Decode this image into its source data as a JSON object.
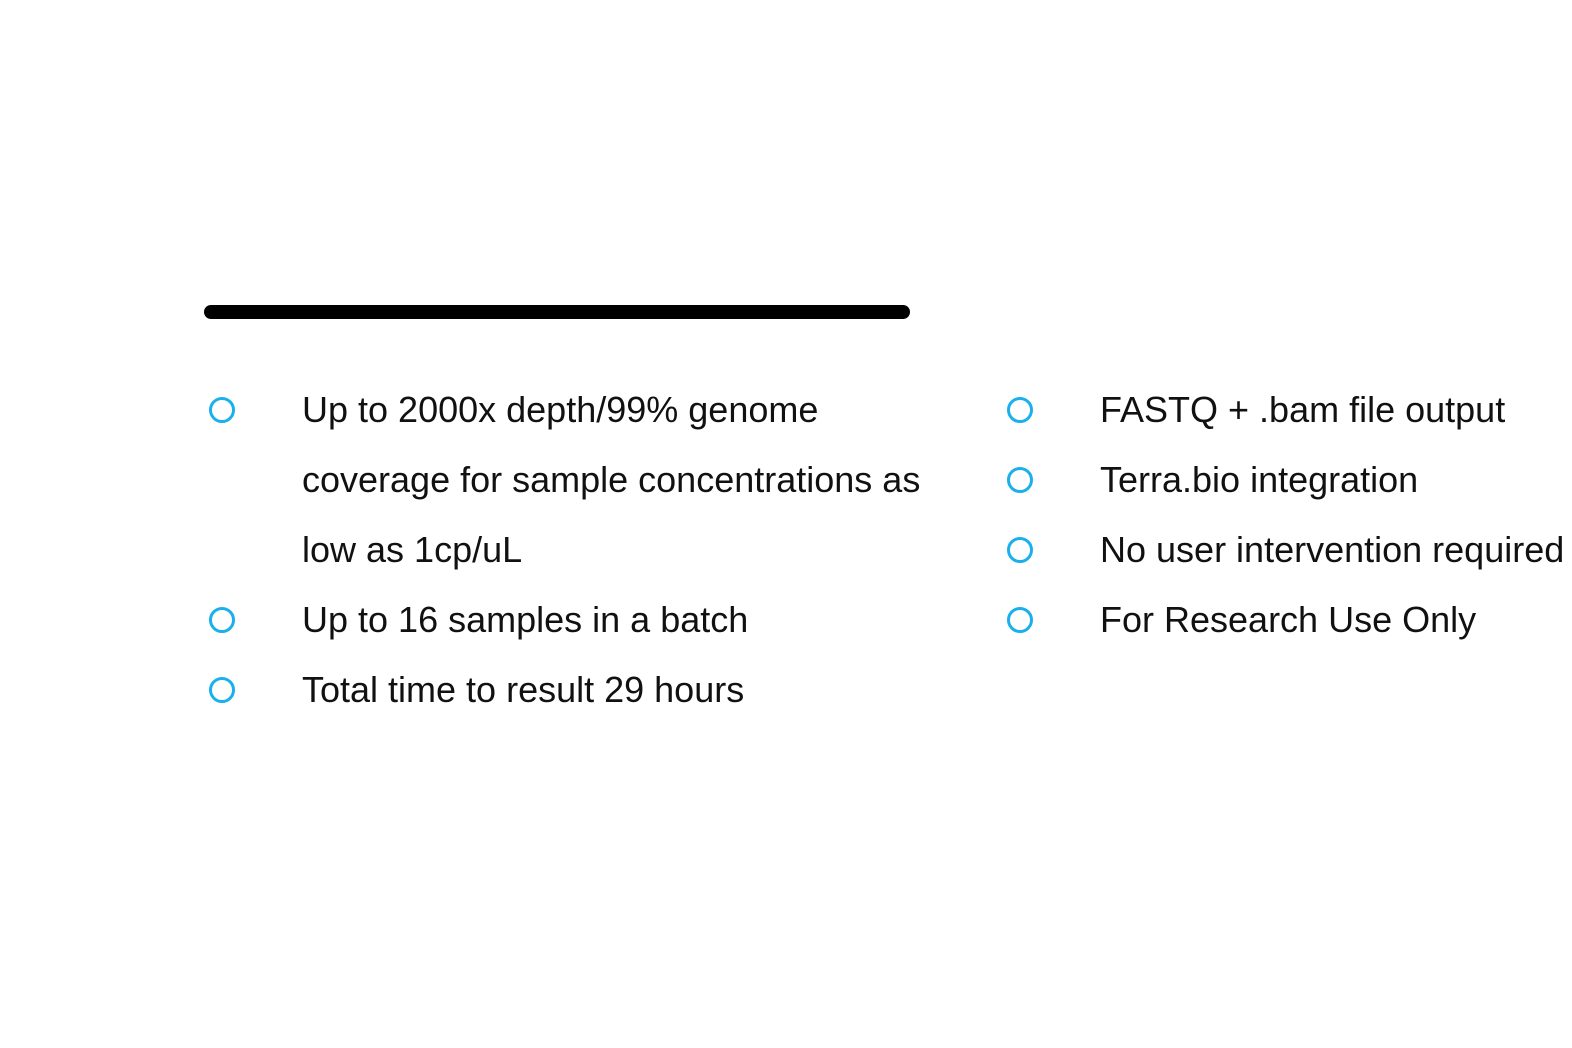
{
  "bullet_color": "#1ab0ec",
  "bullet_icon": "hollow-circle",
  "left_items": [
    "Up to 2000x depth/99% genome coverage for sample concentrations as low as 1cp/uL",
    "Up to 16 samples in a batch",
    "Total time to result 29 hours"
  ],
  "right_items": [
    "FASTQ + .bam file output",
    "Terra.bio integration",
    "No user intervention required",
    "For Research Use Only"
  ]
}
